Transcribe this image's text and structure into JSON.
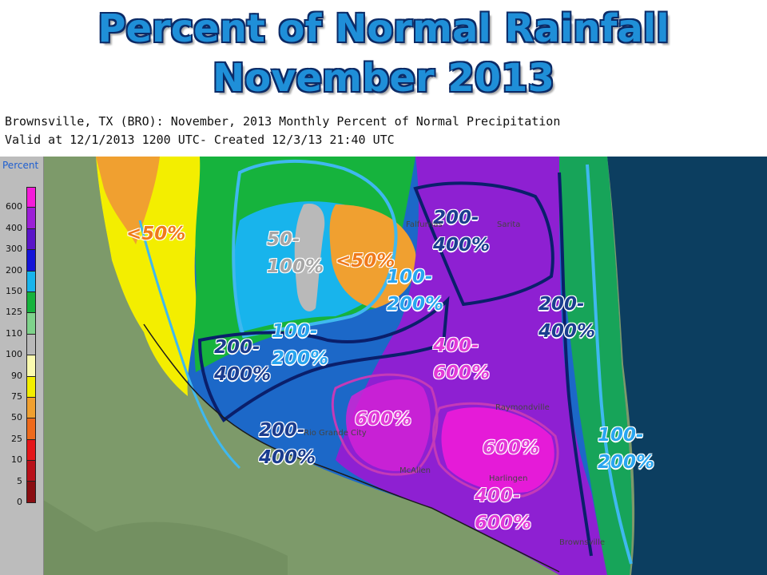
{
  "title": {
    "line1": "Percent of Normal Rainfall",
    "line2": "November 2013"
  },
  "header": {
    "line1": "Brownsville, TX (BRO): November, 2013 Monthly Percent of Normal Precipitation",
    "line2": "Valid at 12/1/2013 1200 UTC- Created 12/3/13 21:40 UTC"
  },
  "legend": {
    "title": "Percent",
    "levels": [
      {
        "label": "600",
        "color": "#f41bd9"
      },
      {
        "label": "400",
        "color": "#9c1fd6"
      },
      {
        "label": "300",
        "color": "#5a14c8"
      },
      {
        "label": "200",
        "color": "#1414d8"
      },
      {
        "label": "150",
        "color": "#18b4ec"
      },
      {
        "label": "125",
        "color": "#16b33d"
      },
      {
        "label": "110",
        "color": "#7fd28b"
      },
      {
        "label": "100",
        "color": "#b9b9b9"
      },
      {
        "label": "90",
        "color": "#fbfbb0"
      },
      {
        "label": "75",
        "color": "#f3ee00"
      },
      {
        "label": "50",
        "color": "#f0a030"
      },
      {
        "label": "25",
        "color": "#ee6a1c"
      },
      {
        "label": "10",
        "color": "#e4161a"
      },
      {
        "label": "5",
        "color": "#b8101a"
      },
      {
        "label": "0",
        "color": "#8a0d12"
      }
    ]
  },
  "annotations": [
    {
      "text": "<50%",
      "style": "orange"
    },
    {
      "text": "50-\n100%",
      "style": "gray"
    },
    {
      "text": "<50%",
      "style": "orange"
    },
    {
      "text": "200-\n400%",
      "style": "dark"
    },
    {
      "text": "100-\n200%",
      "style": "light"
    },
    {
      "text": "100-\n200%",
      "style": "light"
    },
    {
      "text": "200-\n400%",
      "style": "dark"
    },
    {
      "text": "400-\n600%",
      "style": "magenta"
    },
    {
      "text": "200-\n400%",
      "style": "dark"
    },
    {
      "text": "600%",
      "style": "magenta"
    },
    {
      "text": "200-\n400%",
      "style": "dark"
    },
    {
      "text": "600%",
      "style": "magenta"
    },
    {
      "text": "400-\n600%",
      "style": "magenta"
    },
    {
      "text": "100-\n200%",
      "style": "light"
    }
  ],
  "cities": [
    "Falfurrias",
    "Sarita",
    "Raymondville",
    "McAllen",
    "Harlingen",
    "Brownsville",
    "Rio Grande City"
  ],
  "colors": {
    "water": "#0c3e60",
    "terrain": "#7d9a6a",
    "title_fill": "#1f8fd8",
    "title_outline": "#0b2a66"
  }
}
